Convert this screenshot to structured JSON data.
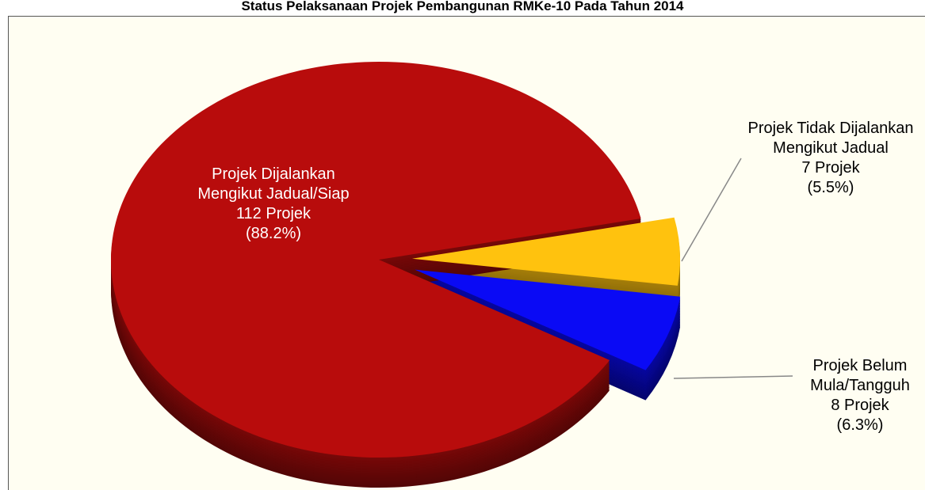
{
  "chart_data": {
    "type": "pie",
    "title": "Status Pelaksanaan Projek Pembangunan RMKe-10 Pada Tahun 2014",
    "categories": [
      "Projek Tidak Dijalankan Mengikut Jadual",
      "Projek Belum Mula/Tangguh",
      "Projek Dijalankan Mengikut Jadual/Siap"
    ],
    "values": [
      7,
      8,
      112
    ],
    "value_labels": [
      "7 Projek",
      "8 Projek",
      "112 Projek"
    ],
    "percentages": [
      5.5,
      6.3,
      88.2
    ],
    "percentage_labels": [
      "(5.5%)",
      "(6.3%)",
      "(88.2%)"
    ],
    "colors": [
      "#ffc20e",
      "#0a0af5",
      "#b80c0c"
    ]
  }
}
